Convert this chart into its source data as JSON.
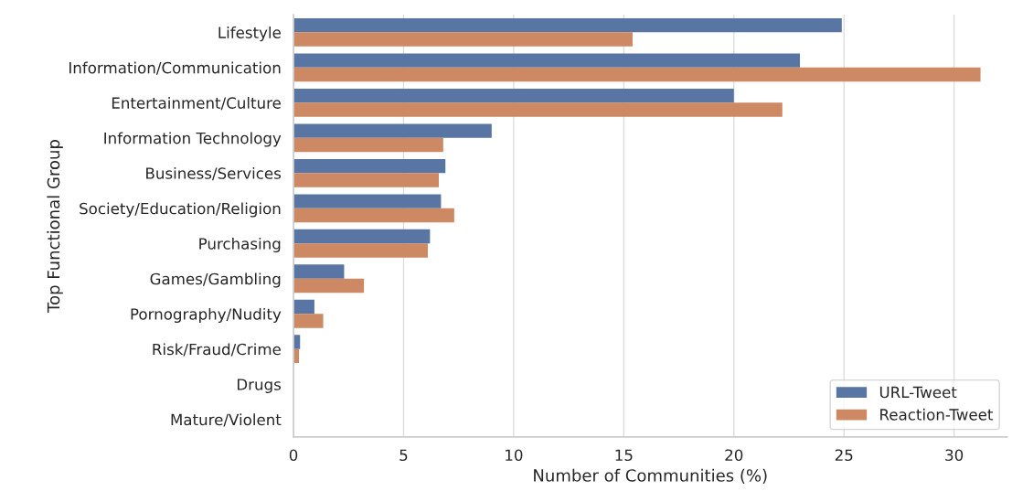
{
  "chart_data": {
    "type": "bar",
    "orientation": "horizontal",
    "xlabel": "Number of Communities (%)",
    "ylabel": "Top Functional Group",
    "categories": [
      "Lifestyle",
      "Information/Communication",
      "Entertainment/Culture",
      "Information Technology",
      "Business/Services",
      "Society/Education/Religion",
      "Purchasing",
      "Games/Gambling",
      "Pornography/Nudity",
      "Risk/Fraud/Crime",
      "Drugs",
      "Mature/Violent"
    ],
    "series": [
      {
        "name": "URL-Tweet",
        "color": "#5975a4",
        "values": [
          24.9,
          23.0,
          20.0,
          9.0,
          6.9,
          6.7,
          6.2,
          2.3,
          0.95,
          0.3,
          0,
          0
        ]
      },
      {
        "name": "Reaction-Tweet",
        "color": "#cc8963",
        "values": [
          15.4,
          31.2,
          22.2,
          6.8,
          6.6,
          7.3,
          6.1,
          3.2,
          1.35,
          0.25,
          0,
          0
        ]
      }
    ],
    "xlim": [
      0,
      32.4
    ],
    "xticks": [
      0,
      5,
      10,
      15,
      20,
      25,
      30
    ],
    "grid": "x",
    "legend": "bottom right"
  }
}
